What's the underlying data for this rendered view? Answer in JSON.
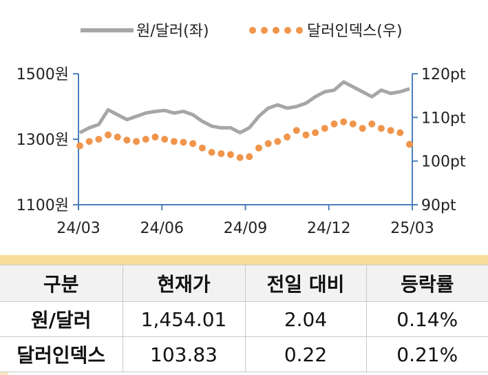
{
  "chart_data": {
    "type": "line",
    "legend": [
      {
        "name": "원/달러(좌)",
        "color": "#a6a6a6",
        "style": "line"
      },
      {
        "name": "달러인덱스(우)",
        "color": "#f0954b",
        "style": "dots"
      }
    ],
    "legend_placement": "top-center",
    "x_ticks": [
      "24/03",
      "24/06",
      "24/09",
      "24/12",
      "25/03"
    ],
    "y_left_ticks": [
      "1500원",
      "1300원",
      "1100원"
    ],
    "y_left_range": [
      1100,
      1500
    ],
    "y_right_ticks": [
      "120pt",
      "110pt",
      "100pt",
      "90pt"
    ],
    "y_right_range": [
      90,
      120
    ],
    "grid": false,
    "series": [
      {
        "name": "원/달러(좌)",
        "axis": "left",
        "x": [
          "24/03",
          "24/03",
          "24/04",
          "24/04",
          "24/04",
          "24/05",
          "24/05",
          "24/05",
          "24/06",
          "24/06",
          "24/06",
          "24/07",
          "24/07",
          "24/07",
          "24/08",
          "24/08",
          "24/08",
          "24/09",
          "24/09",
          "24/09",
          "24/10",
          "24/10",
          "24/10",
          "24/11",
          "24/11",
          "24/11",
          "24/12",
          "24/12",
          "24/12",
          "25/01",
          "25/01",
          "25/01",
          "25/02",
          "25/02",
          "25/02",
          "25/03"
        ],
        "values": [
          1320,
          1335,
          1345,
          1390,
          1375,
          1360,
          1370,
          1380,
          1385,
          1388,
          1380,
          1385,
          1375,
          1355,
          1340,
          1335,
          1335,
          1320,
          1335,
          1370,
          1395,
          1405,
          1395,
          1400,
          1410,
          1430,
          1445,
          1450,
          1475,
          1460,
          1445,
          1430,
          1450,
          1440,
          1445,
          1454
        ]
      },
      {
        "name": "달러인덱스(우)",
        "axis": "right",
        "x": [
          "24/03",
          "24/03",
          "24/04",
          "24/04",
          "24/04",
          "24/05",
          "24/05",
          "24/05",
          "24/06",
          "24/06",
          "24/06",
          "24/07",
          "24/07",
          "24/07",
          "24/08",
          "24/08",
          "24/08",
          "24/09",
          "24/09",
          "24/09",
          "24/10",
          "24/10",
          "24/10",
          "24/11",
          "24/11",
          "24/11",
          "24/12",
          "24/12",
          "24/12",
          "25/01",
          "25/01",
          "25/01",
          "25/02",
          "25/02",
          "25/02",
          "25/03"
        ],
        "values": [
          103.5,
          104.5,
          105.0,
          106.0,
          105.5,
          104.8,
          104.5,
          105.0,
          105.5,
          105.0,
          104.5,
          104.3,
          104.0,
          103.0,
          102.0,
          101.7,
          101.5,
          100.8,
          101.0,
          103.0,
          104.0,
          104.5,
          105.5,
          107.0,
          106.0,
          106.5,
          107.5,
          108.5,
          109.0,
          108.5,
          107.5,
          108.5,
          107.5,
          107.0,
          106.5,
          103.83
        ]
      }
    ]
  },
  "table": {
    "headers": [
      "구분",
      "현재가",
      "전일 대비",
      "등락률"
    ],
    "rows": [
      [
        "원/달러",
        "1,454.01",
        "2.04",
        "0.14%"
      ],
      [
        "달러인덱스",
        "103.83",
        "0.22",
        "0.21%"
      ]
    ]
  }
}
